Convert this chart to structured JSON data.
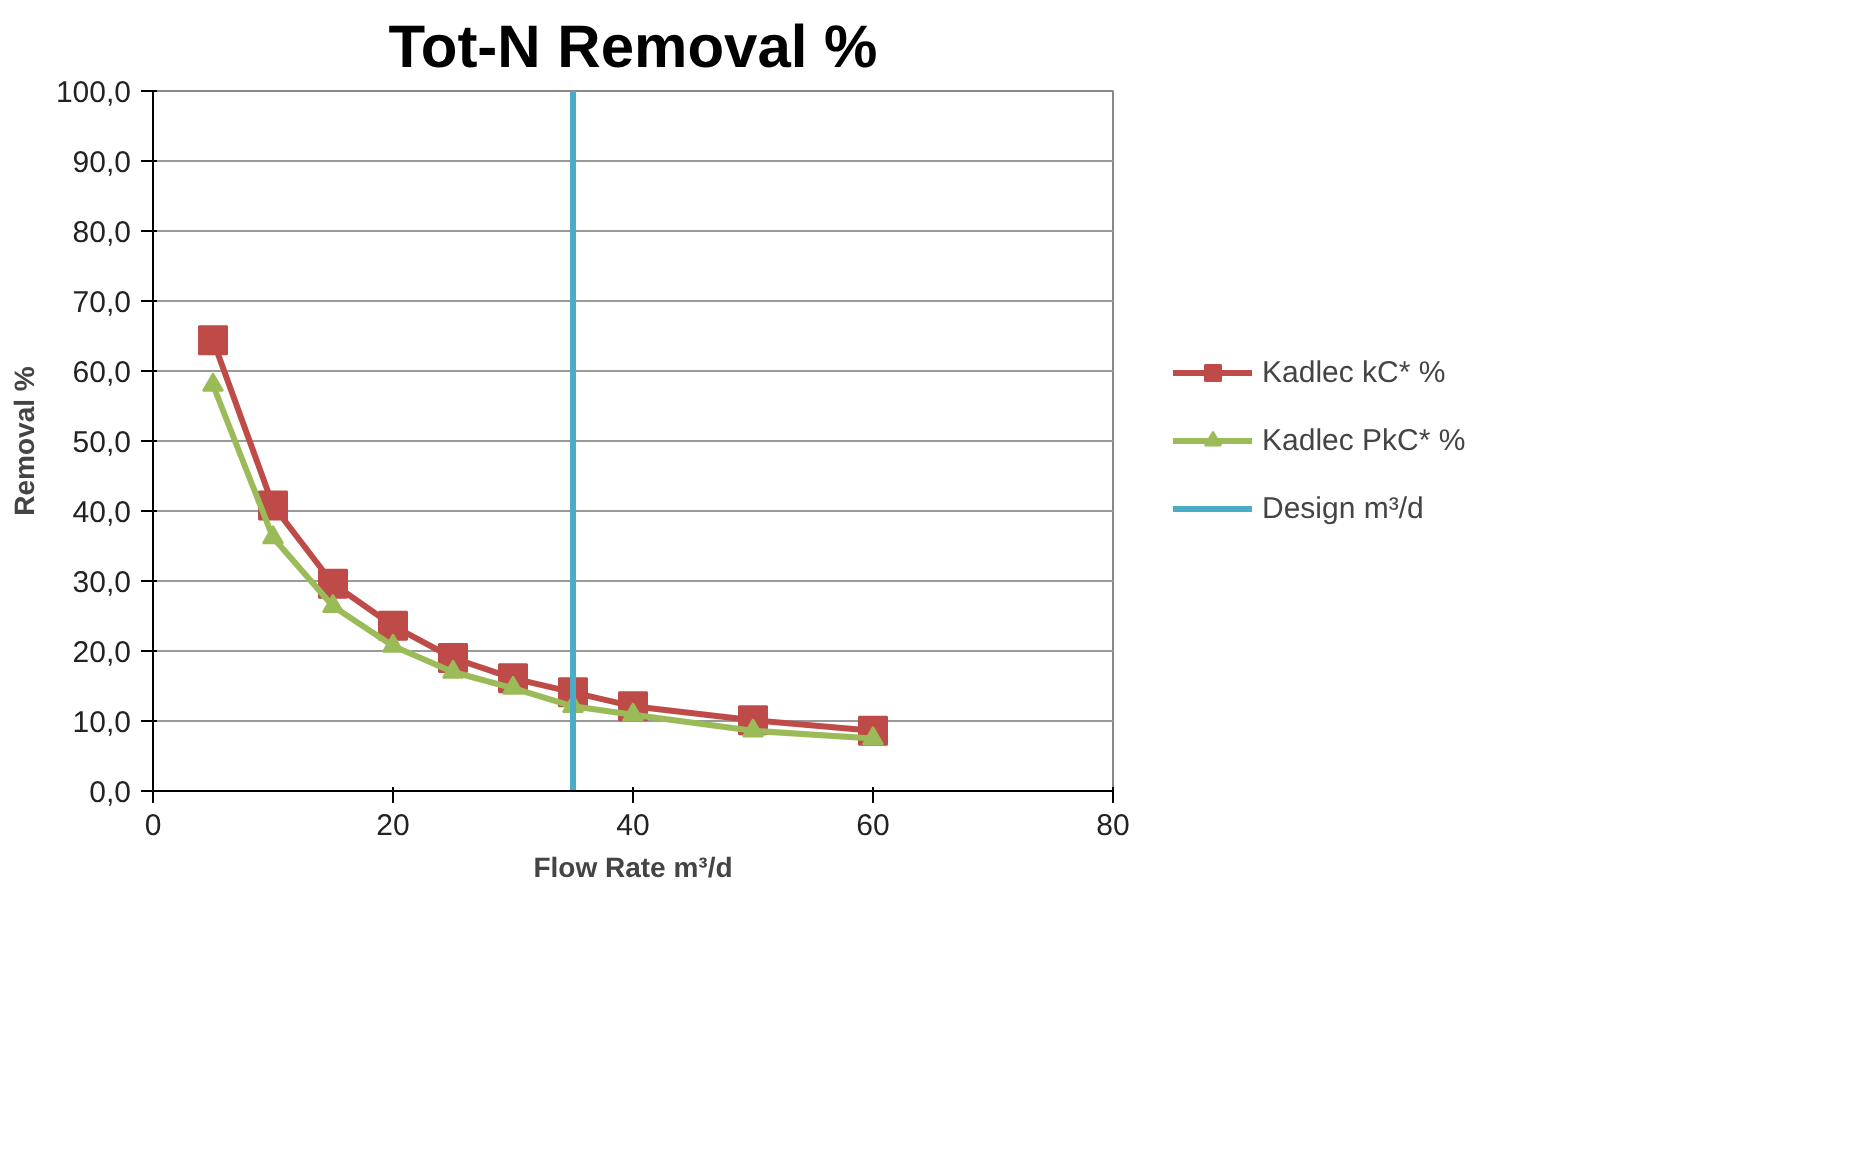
{
  "chart_data": {
    "type": "line",
    "title": "Tot-N Removal %",
    "xlabel": "Flow Rate m³/d",
    "ylabel": "Removal %",
    "x": [
      5,
      10,
      15,
      20,
      25,
      30,
      35,
      40,
      50,
      60
    ],
    "series": [
      {
        "name": "Kadlec kC* %",
        "color": "#be4b48",
        "marker": "square",
        "values": [
          64.4,
          40.8,
          29.6,
          23.6,
          19.0,
          16.1,
          14.1,
          12.1,
          10.1,
          8.6
        ]
      },
      {
        "name": "Kadlec PkC* %",
        "color": "#9bbb59",
        "marker": "triangle",
        "values": [
          58.0,
          36.2,
          26.4,
          20.7,
          17.0,
          14.7,
          12.1,
          10.9,
          8.6,
          7.5
        ]
      },
      {
        "name": "Design m³/d",
        "color": "#4bacc6",
        "marker": "none",
        "x": [
          35,
          35
        ],
        "values": [
          0,
          100
        ]
      }
    ],
    "xlim": [
      0,
      80
    ],
    "xticks": [
      0,
      20,
      40,
      60,
      80
    ],
    "ylim": [
      0,
      100
    ],
    "yticks": [
      {
        "value": 0,
        "label": "0,0"
      },
      {
        "value": 10,
        "label": "10,0"
      },
      {
        "value": 20,
        "label": "20,0"
      },
      {
        "value": 30,
        "label": "30,0"
      },
      {
        "value": 40,
        "label": "40,0"
      },
      {
        "value": 50,
        "label": "50,0"
      },
      {
        "value": 60,
        "label": "60,0"
      },
      {
        "value": 70,
        "label": "70,0"
      },
      {
        "value": 80,
        "label": "80,0"
      },
      {
        "value": 90,
        "label": "90,0"
      },
      {
        "value": 100,
        "label": "100,0"
      }
    ],
    "grid": "y",
    "legend": "right",
    "line_style": "solid"
  }
}
